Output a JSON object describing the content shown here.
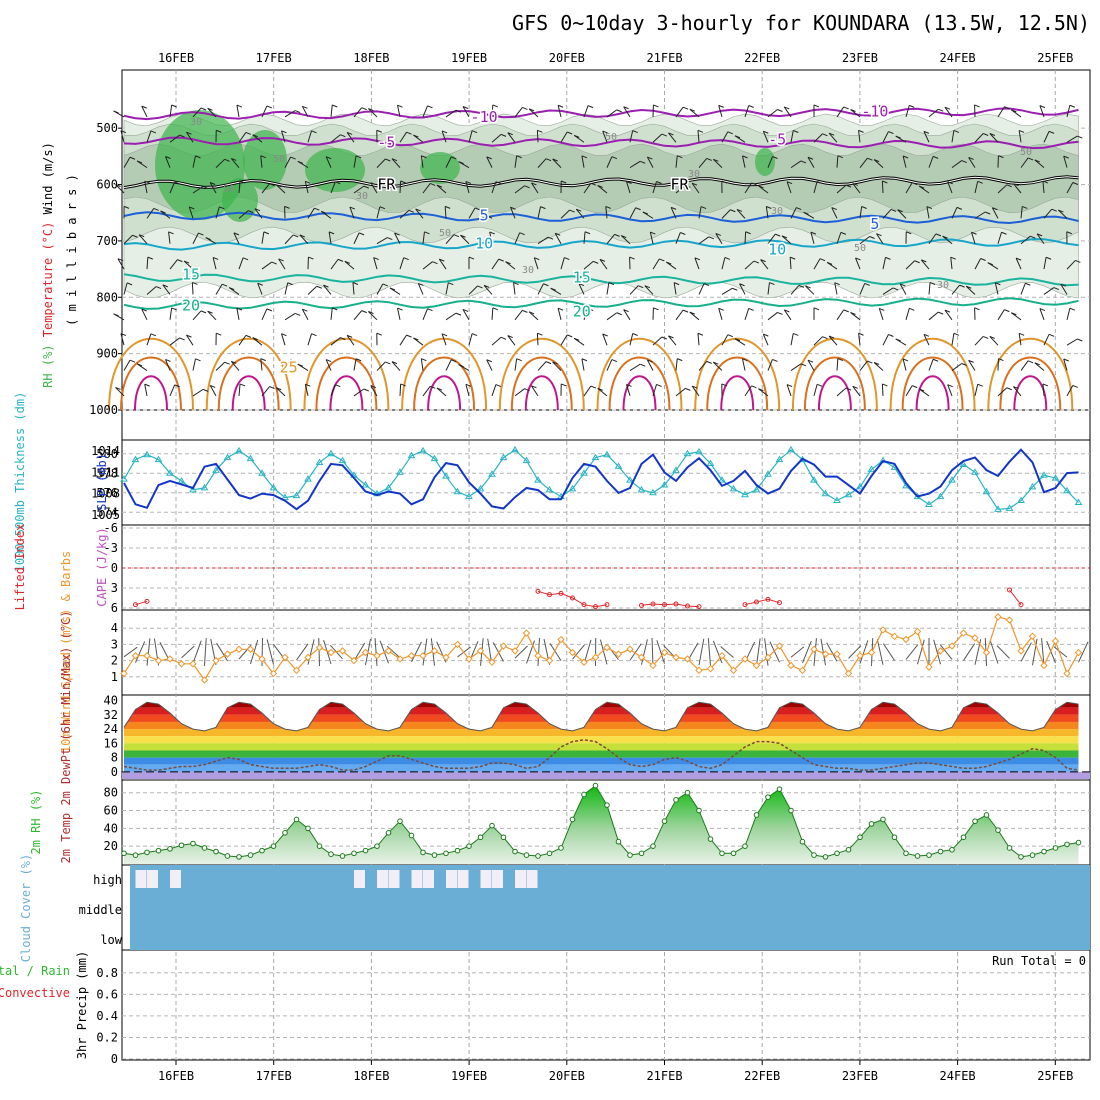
{
  "title": "GFS 0~10day 3-hourly for KOUNDARA (13.5W, 12.5N)",
  "colors": {
    "rh_green": "#3cb44b",
    "temp_purple": "#9a1fb0",
    "temp_blue": "#1c5fd6",
    "temp_cyan": "#17a6c9",
    "temp_teal": "#19b39e",
    "temp_orange": "#e0962a",
    "temp_magenta": "#c0168c",
    "thickness": "#27b4c4",
    "slp": "#1436c8",
    "lifted_index": "#e0252a",
    "wind_speed": "#f0962b",
    "cloud_blue": "#6aaed6",
    "rh2m": "#2fb82f"
  },
  "chart_data": [
    {
      "type": "heatmap",
      "name": "upper-air",
      "ylabel_parts": [
        "RH (%)",
        "Temperature (°C)",
        "Wind (m/s)"
      ],
      "ylabel2": "( m i l l i b a r s )",
      "pressure_ticks": [
        "500",
        "600",
        "700",
        "800",
        "900",
        "1000"
      ],
      "x_dates": [
        "16FEB",
        "17FEB",
        "18FEB",
        "19FEB",
        "20FEB",
        "21FEB",
        "22FEB",
        "23FEB",
        "24FEB",
        "25FEB"
      ],
      "isotherm_labels": [
        {
          "text": "-10",
          "level": 480,
          "x": "19FEB"
        },
        {
          "text": "-10",
          "level": 470,
          "x": "23FEB"
        },
        {
          "text": "-5",
          "level": 525,
          "x": "18FEB"
        },
        {
          "text": "-5",
          "level": 520,
          "x": "22FEB"
        },
        {
          "text": "FR",
          "level": 600,
          "x": "18FEB"
        },
        {
          "text": "FR",
          "level": 600,
          "x": "21FEB"
        },
        {
          "text": "5",
          "level": 655,
          "x": "19FEB"
        },
        {
          "text": "5",
          "level": 670,
          "x": "23FEB"
        },
        {
          "text": "10",
          "level": 705,
          "x": "19FEB"
        },
        {
          "text": "10",
          "level": 715,
          "x": "22FEB"
        },
        {
          "text": "15",
          "level": 760,
          "x": "16FEB"
        },
        {
          "text": "15",
          "level": 765,
          "x": "20FEB"
        },
        {
          "text": "20",
          "level": 815,
          "x": "16FEB"
        },
        {
          "text": "20",
          "level": 825,
          "x": "20FEB"
        },
        {
          "text": "25",
          "level": 925,
          "x": "17FEB"
        }
      ],
      "rh_labels": [
        "30",
        "50",
        "30",
        "50",
        "30",
        "50",
        "30",
        "30",
        "50",
        "30",
        "50",
        "50"
      ]
    },
    {
      "type": "line",
      "name": "thickness-slp",
      "ylabel_left": "1000-500mb Thickness (dm)",
      "ylabel_right": "SLP (mb)",
      "left_ticks": [
        "574",
        "576",
        "578",
        "580"
      ],
      "right_ticks": [
        "1005",
        "1008",
        "1011",
        "1014"
      ],
      "thickness_dm": [
        577.4,
        579.4,
        579.9,
        579.4,
        578.0,
        577.2,
        576.3,
        576.5,
        578.3,
        579.6,
        580.3,
        579.5,
        578.0,
        576.5,
        575.5,
        575.7,
        577.4,
        579.1,
        580.0,
        579.3,
        577.8,
        576.8,
        575.9,
        576.5,
        578.1,
        579.8,
        580.3,
        579.5,
        577.7,
        576.1,
        575.6,
        576.4,
        577.9,
        579.6,
        580.4,
        579.3,
        577.3,
        576.3,
        575.6,
        576.4,
        578.0,
        579.6,
        579.9,
        578.7,
        577.3,
        576.3,
        576.0,
        576.8,
        578.3,
        580.0,
        580.2,
        579.0,
        577.3,
        576.4,
        575.8,
        576.3,
        577.9,
        579.4,
        580.4,
        579.4,
        577.3,
        575.9,
        575.2,
        575.8,
        576.6,
        578.4,
        579.3,
        578.6,
        576.7,
        575.6,
        574.8,
        575.6,
        577.3,
        578.9,
        578.1,
        576.1,
        574.3,
        574.4,
        575.2,
        576.6,
        577.8,
        577.5,
        576.2,
        575.0
      ],
      "slp_mb": [
        1009.5,
        1006.5,
        1006.0,
        1009.2,
        1009.8,
        1009.3,
        1008.8,
        1011.8,
        1012.2,
        1010.0,
        1007.8,
        1007.3,
        1008.0,
        1007.8,
        1007.0,
        1005.8,
        1007.0,
        1009.8,
        1012.2,
        1012.0,
        1010.2,
        1008.3,
        1007.8,
        1008.3,
        1008.0,
        1006.5,
        1007.2,
        1010.3,
        1012.3,
        1012.0,
        1009.6,
        1008.0,
        1006.2,
        1005.9,
        1007.5,
        1008.8,
        1008.5,
        1007.2,
        1007.2,
        1010.2,
        1012.2,
        1011.8,
        1009.8,
        1008.1,
        1008.8,
        1012.2,
        1013.5,
        1011.0,
        1009.8,
        1011.7,
        1013.0,
        1011.3,
        1009.1,
        1009.8,
        1011.2,
        1009.2,
        1008.0,
        1008.7,
        1011.2,
        1012.9,
        1012.1,
        1010.4,
        1010.4,
        1009.2,
        1008.0,
        1010.5,
        1012.6,
        1012.2,
        1009.5,
        1007.6,
        1008.0,
        1009.0,
        1011.3,
        1012.6,
        1013.1,
        1011.3,
        1010.5,
        1012.5,
        1014.2,
        1012.4,
        1008.2,
        1008.8,
        1010.9,
        1011.0
      ]
    },
    {
      "type": "line",
      "name": "cape-lifted-index",
      "ylabel_left": "Lifted Index",
      "ylabel_right": "CAPE (J/kg)",
      "ticks": [
        "-6",
        "-3",
        "0",
        "3",
        "6"
      ],
      "lifted_index": [
        null,
        5.5,
        5.0,
        null,
        null,
        null,
        null,
        null,
        null,
        null,
        null,
        null,
        null,
        null,
        null,
        null,
        null,
        null,
        null,
        null,
        null,
        null,
        null,
        null,
        null,
        null,
        null,
        null,
        null,
        null,
        null,
        null,
        null,
        null,
        null,
        null,
        3.5,
        4.0,
        3.8,
        4.5,
        5.5,
        5.8,
        5.5,
        null,
        null,
        5.6,
        5.4,
        5.5,
        5.4,
        5.7,
        5.8,
        null,
        null,
        null,
        5.5,
        5.1,
        4.7,
        5.2,
        null,
        null,
        null,
        null,
        null,
        null,
        null,
        null,
        null,
        null,
        null,
        null,
        null,
        null,
        null,
        null,
        null,
        null,
        null,
        3.3,
        5.5,
        null,
        null,
        null,
        null,
        null
      ]
    },
    {
      "type": "line",
      "name": "10m-wind",
      "ylabel": "10m Wind Speed (m/s) & Barbs",
      "ticks": [
        "1",
        "2",
        "3",
        "4"
      ],
      "speed_ms": [
        1.2,
        2.3,
        2.3,
        2.0,
        2.1,
        1.8,
        1.8,
        0.8,
        2.0,
        2.4,
        2.7,
        2.7,
        2.1,
        1.2,
        2.2,
        1.4,
        2.2,
        2.8,
        2.5,
        2.6,
        2.0,
        2.5,
        2.3,
        2.6,
        2.1,
        2.3,
        2.3,
        2.6,
        2.2,
        3.0,
        2.1,
        2.6,
        1.9,
        2.9,
        2.6,
        3.7,
        2.3,
        2.0,
        3.3,
        2.5,
        1.9,
        2.2,
        2.8,
        2.4,
        2.7,
        2.2,
        1.7,
        2.5,
        2.2,
        2.1,
        1.4,
        1.5,
        2.3,
        1.4,
        2.1,
        1.7,
        2.2,
        2.9,
        1.7,
        1.4,
        2.7,
        2.4,
        2.4,
        1.2,
        2.3,
        2.5,
        3.9,
        3.5,
        3.3,
        3.8,
        1.6,
        2.6,
        2.9,
        3.7,
        3.4,
        2.5,
        4.7,
        4.5,
        2.6,
        3.5,
        1.7,
        3.2,
        1.2,
        2.5
      ]
    },
    {
      "type": "area",
      "name": "2m-temp",
      "ylabel": "2m Temp 2m DewPt (6hr Min/Max) (°C)",
      "ticks": [
        "0",
        "8",
        "16",
        "24",
        "32",
        "40"
      ],
      "temp_c": [
        25,
        35,
        39,
        38,
        33,
        27,
        24,
        23,
        25,
        36,
        39,
        38,
        33,
        27,
        24,
        23,
        25,
        35,
        39,
        38,
        33,
        27,
        24,
        23,
        25,
        35,
        39,
        38,
        33,
        27,
        24,
        23,
        25,
        36,
        39,
        38,
        33,
        27,
        24,
        23,
        25,
        35,
        39,
        38,
        33,
        27,
        24,
        23,
        25,
        36,
        39,
        38,
        33,
        27,
        24,
        23,
        25,
        36,
        39,
        38,
        33,
        27,
        24,
        23,
        25,
        35,
        39,
        38,
        33,
        27,
        24,
        23,
        25,
        36,
        39,
        38,
        33,
        27,
        24,
        23,
        25,
        35,
        39,
        38
      ],
      "dewpt_c": [
        3,
        2,
        1,
        1,
        2,
        3,
        3,
        4,
        6,
        8,
        7,
        4,
        3,
        2,
        2,
        2,
        3,
        4,
        3,
        1,
        1,
        3,
        6,
        9,
        9,
        7,
        5,
        3,
        2,
        2,
        2,
        3,
        5,
        5,
        4,
        2,
        3,
        8,
        14,
        17,
        18,
        17,
        13,
        8,
        4,
        3,
        4,
        7,
        8,
        6,
        3,
        2,
        4,
        9,
        14,
        17,
        17,
        16,
        12,
        8,
        4,
        3,
        2,
        2,
        1,
        1,
        2,
        3,
        4,
        5,
        5,
        4,
        3,
        2,
        2,
        3,
        5,
        7,
        10,
        13,
        12,
        8,
        2,
        1
      ]
    },
    {
      "type": "area",
      "name": "2m-rh",
      "ylabel": "2m RH (%)",
      "ticks": [
        "20",
        "40",
        "60",
        "80"
      ],
      "rh_pct": [
        12,
        10,
        13,
        15,
        17,
        21,
        23,
        18,
        14,
        9,
        8,
        10,
        15,
        20,
        35,
        50,
        40,
        20,
        11,
        9,
        12,
        15,
        20,
        35,
        48,
        32,
        13,
        10,
        12,
        15,
        20,
        30,
        43,
        30,
        14,
        10,
        9,
        12,
        18,
        50,
        78,
        88,
        66,
        25,
        10,
        12,
        20,
        48,
        72,
        80,
        60,
        28,
        12,
        12,
        20,
        55,
        75,
        84,
        60,
        25,
        10,
        8,
        12,
        16,
        30,
        45,
        50,
        30,
        12,
        9,
        10,
        14,
        16,
        30,
        48,
        55,
        38,
        18,
        8,
        10,
        14,
        18,
        22,
        24
      ]
    },
    {
      "type": "heatmap",
      "name": "cloud-cover",
      "ylabel": "Cloud Cover (%)",
      "ticks": [
        "low",
        "middle",
        "high"
      ],
      "clear_column_runs": [
        [
          0,
          5
        ],
        [
          20,
          36
        ]
      ]
    },
    {
      "type": "bar",
      "name": "precip",
      "ylabel": "3hr Precip (mm)",
      "ylabel_extra": [
        "tal / Rain",
        "Convective"
      ],
      "ticks": [
        "0",
        "0.2",
        "0.4",
        "0.6",
        "0.8"
      ],
      "precip_mm": [],
      "run_total": "Run Total = 0"
    }
  ]
}
